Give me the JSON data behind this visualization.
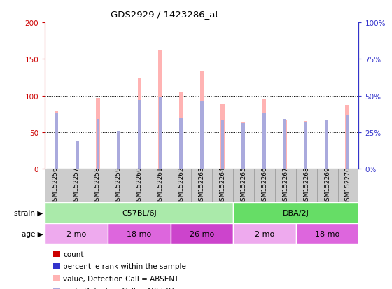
{
  "title": "GDS2929 / 1423286_at",
  "samples": [
    "GSM152256",
    "GSM152257",
    "GSM152258",
    "GSM152259",
    "GSM152260",
    "GSM152261",
    "GSM152262",
    "GSM152263",
    "GSM152264",
    "GSM152265",
    "GSM152266",
    "GSM152267",
    "GSM152268",
    "GSM152269",
    "GSM152270"
  ],
  "count_values": [
    80,
    25,
    97,
    51,
    125,
    163,
    105,
    134,
    88,
    63,
    95,
    67,
    65,
    67,
    87
  ],
  "rank_values": [
    38,
    19,
    34,
    26,
    47,
    49,
    35,
    46,
    33,
    31,
    38,
    34,
    32,
    33,
    37
  ],
  "absent_flags": [
    true,
    true,
    true,
    true,
    true,
    true,
    true,
    true,
    true,
    true,
    true,
    true,
    true,
    true,
    true
  ],
  "ylim_left": [
    0,
    200
  ],
  "ylim_right": [
    0,
    100
  ],
  "yticks_left": [
    0,
    50,
    100,
    150,
    200
  ],
  "yticks_right": [
    0,
    25,
    50,
    75,
    100
  ],
  "ytick_labels_left": [
    "0",
    "50",
    "100",
    "150",
    "200"
  ],
  "ytick_labels_right": [
    "0%",
    "25%",
    "50%",
    "75%",
    "100%"
  ],
  "bar_color_present": "#cc0000",
  "bar_color_absent": "#ffb3b3",
  "rank_color_present": "#3333cc",
  "rank_color_absent": "#aaaadd",
  "strain_groups": [
    {
      "label": "C57BL/6J",
      "start": 0,
      "end": 9,
      "color": "#aaeaaa"
    },
    {
      "label": "DBA/2J",
      "start": 9,
      "end": 15,
      "color": "#66dd66"
    }
  ],
  "age_groups": [
    {
      "label": "2 mo",
      "start": 0,
      "end": 3,
      "color": "#eeaaee"
    },
    {
      "label": "18 mo",
      "start": 3,
      "end": 6,
      "color": "#dd66dd"
    },
    {
      "label": "26 mo",
      "start": 6,
      "end": 9,
      "color": "#cc44cc"
    },
    {
      "label": "2 mo",
      "start": 9,
      "end": 12,
      "color": "#eeaaee"
    },
    {
      "label": "18 mo",
      "start": 12,
      "end": 15,
      "color": "#dd66dd"
    }
  ],
  "legend_items": [
    {
      "label": "count",
      "color": "#cc0000"
    },
    {
      "label": "percentile rank within the sample",
      "color": "#3333cc"
    },
    {
      "label": "value, Detection Call = ABSENT",
      "color": "#ffb3b3"
    },
    {
      "label": "rank, Detection Call = ABSENT",
      "color": "#aaaadd"
    }
  ],
  "left_axis_color": "#cc0000",
  "right_axis_color": "#3333cc",
  "bar_width": 0.18,
  "rank_bar_width": 0.18
}
